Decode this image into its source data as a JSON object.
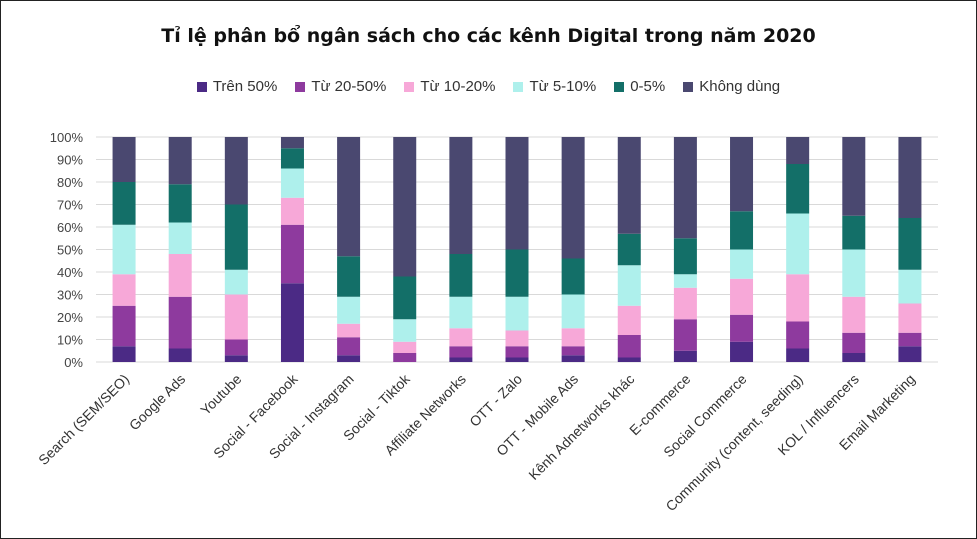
{
  "chart_data": {
    "type": "bar",
    "stacked": true,
    "title": "Tỉ lệ phân bổ ngân sách cho các kênh Digital trong năm 2020",
    "xlabel": "",
    "ylabel": "",
    "ylim": [
      0,
      100
    ],
    "yticks": [
      "0%",
      "10%",
      "20%",
      "30%",
      "40%",
      "50%",
      "60%",
      "70%",
      "80%",
      "90%",
      "100%"
    ],
    "legend_position": "top",
    "grid": true,
    "categories": [
      "Search (SEM/SEO)",
      "Google Ads",
      "Youtube",
      "Social - Facebook",
      "Social - Instagram",
      "Social - Tiktok",
      "Affiliate Networks",
      "OTT - Zalo",
      "OTT - Mobile Ads",
      "Kênh Adnetworks khác",
      "E-commerce",
      "Social Commerce",
      "Community (content, seeding)",
      "KOL / Influencers",
      "Email Marketing"
    ],
    "series": [
      {
        "name": "Trên 50%",
        "color": "#4b2a85",
        "values": [
          7,
          6,
          3,
          35,
          3,
          0,
          2,
          2,
          3,
          2,
          5,
          9,
          6,
          4,
          7
        ]
      },
      {
        "name": "Từ 20-50%",
        "color": "#8e3a9e",
        "values": [
          18,
          23,
          7,
          26,
          8,
          4,
          5,
          5,
          4,
          10,
          14,
          12,
          12,
          9,
          6
        ]
      },
      {
        "name": "Từ 10-20%",
        "color": "#f7a8d8",
        "values": [
          14,
          19,
          20,
          12,
          6,
          5,
          8,
          7,
          8,
          13,
          14,
          16,
          21,
          16,
          13
        ]
      },
      {
        "name": "Từ 5-10%",
        "color": "#aef0ec",
        "values": [
          22,
          14,
          11,
          13,
          12,
          10,
          14,
          15,
          15,
          18,
          6,
          13,
          27,
          21,
          15
        ]
      },
      {
        "name": "0-5%",
        "color": "#136f68",
        "values": [
          19,
          17,
          29,
          9,
          18,
          19,
          19,
          21,
          16,
          14,
          16,
          17,
          22,
          15,
          23
        ]
      },
      {
        "name": "Không dùng",
        "color": "#4a4870",
        "values": [
          20,
          21,
          30,
          5,
          53,
          62,
          52,
          50,
          54,
          43,
          45,
          33,
          12,
          35,
          36
        ]
      }
    ]
  }
}
